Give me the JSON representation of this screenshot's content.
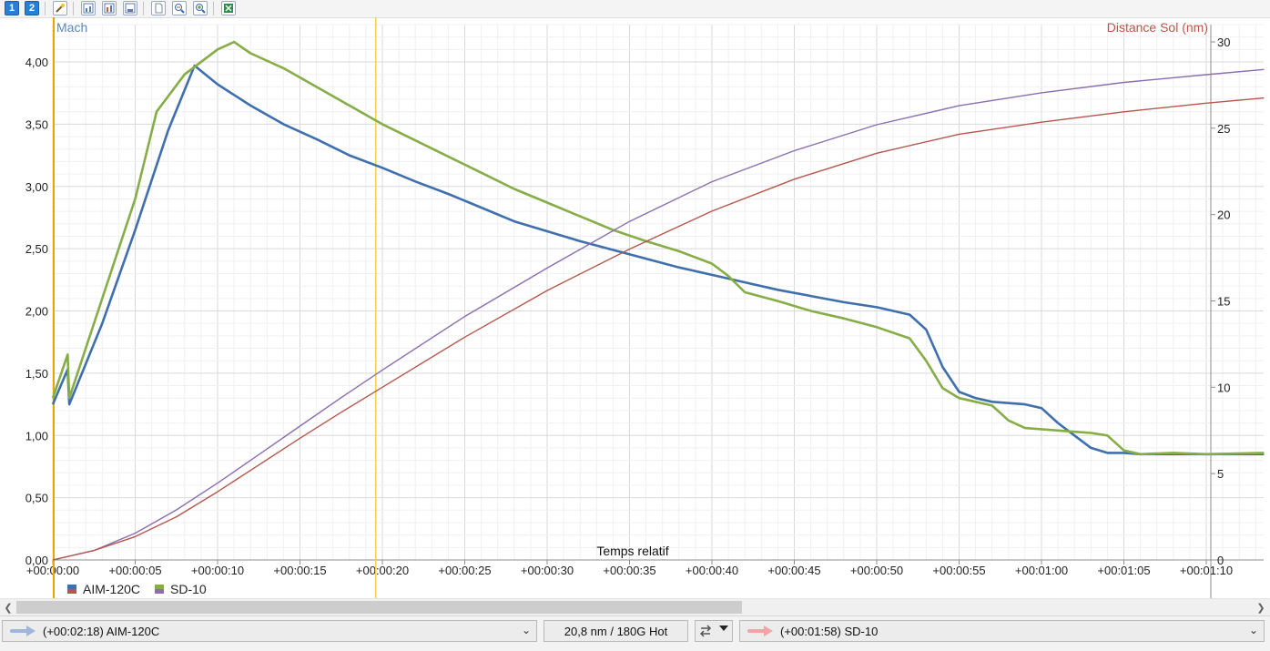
{
  "toolbar": {
    "btn1_label": "1",
    "btn2_label": "2"
  },
  "colors": {
    "series_blue": "#3f6fad",
    "series_green": "#86ad47",
    "series_purple": "#8a6eb0",
    "series_red": "#b5574c",
    "cursor_yellow": "#f2d24a",
    "cursor_orange": "#e8a600"
  },
  "legend": {
    "items": [
      {
        "label": "AIM-120C",
        "swatch_top": "#3f6fad",
        "swatch_bottom": "#b5574c"
      },
      {
        "label": "SD-10",
        "swatch_top": "#86ad47",
        "swatch_bottom": "#8a6eb0"
      }
    ]
  },
  "statusbar": {
    "left_select": "(+00:02:18) AIM-120C",
    "center_readout": "20,8 nm / 180G Hot",
    "right_select": "(+00:01:58) SD-10"
  },
  "chart_data": {
    "type": "line",
    "xlabel": "Temps relatif",
    "y_left_label": "Mach",
    "y_right_label": "Distance Sol (nm)",
    "x_range_seconds": [
      0,
      73.5
    ],
    "x_tick_values": [
      0,
      5,
      10,
      15,
      20,
      25,
      30,
      35,
      40,
      45,
      50,
      55,
      60,
      65,
      70
    ],
    "x_tick_labels": [
      "+00:00:00",
      "+00:00:05",
      "+00:00:10",
      "+00:00:15",
      "+00:00:20",
      "+00:00:25",
      "+00:00:30",
      "+00:00:35",
      "+00:00:40",
      "+00:00:45",
      "+00:00:50",
      "+00:00:55",
      "+00:01:00",
      "+00:01:05",
      "+00:01:10"
    ],
    "y_left_range": [
      0,
      4.3
    ],
    "y_left_ticks": [
      0,
      0.5,
      1,
      1.5,
      2,
      2.5,
      3,
      3.5,
      4
    ],
    "y_left_tick_labels": [
      "0,00",
      "0,50",
      "1,00",
      "1,50",
      "2,00",
      "2,50",
      "3,00",
      "3,50",
      "4,00"
    ],
    "y_right_range": [
      0,
      31
    ],
    "y_right_ticks": [
      0,
      5,
      10,
      15,
      20,
      25,
      30
    ],
    "y_right_tick_labels": [
      "0",
      "5",
      "10",
      "15",
      "20",
      "25",
      "30"
    ],
    "grid": true,
    "cursor_lines_x": [
      0,
      19.6
    ],
    "series": [
      {
        "name": "AIM-120C",
        "axis": "left",
        "color": "#3f6fad",
        "x": [
          0,
          0.9,
          1,
          3,
          5,
          7,
          8.6,
          10,
          12,
          14,
          16,
          18,
          20,
          22,
          24,
          26,
          28,
          30,
          32,
          34,
          36,
          38,
          40,
          42,
          44,
          46,
          48,
          50,
          52,
          53,
          54,
          55,
          56,
          57,
          58,
          59,
          60,
          61,
          62,
          63,
          64,
          65,
          66,
          68,
          70,
          73.5
        ],
        "y": [
          1.25,
          1.53,
          1.25,
          1.9,
          2.65,
          3.45,
          3.97,
          3.82,
          3.65,
          3.5,
          3.38,
          3.25,
          3.15,
          3.04,
          2.94,
          2.83,
          2.72,
          2.64,
          2.56,
          2.49,
          2.42,
          2.35,
          2.29,
          2.23,
          2.17,
          2.12,
          2.07,
          2.03,
          1.97,
          1.85,
          1.55,
          1.35,
          1.3,
          1.27,
          1.26,
          1.25,
          1.22,
          1.1,
          1.0,
          0.9,
          0.86,
          0.86,
          0.85,
          0.85,
          0.85,
          0.85
        ]
      },
      {
        "name": "SD-10",
        "axis": "left",
        "color": "#86ad47",
        "x": [
          0,
          0.9,
          1,
          3,
          5,
          6.3,
          8,
          10,
          11,
          12,
          14,
          16,
          18,
          20,
          22,
          24,
          26,
          28,
          30,
          32,
          34,
          36,
          38,
          40,
          41,
          42,
          44,
          46,
          48,
          50,
          52,
          53,
          54,
          55,
          56,
          57,
          58,
          59,
          60,
          61,
          62,
          63,
          64,
          65,
          66,
          68,
          70,
          73.5
        ],
        "y": [
          1.3,
          1.65,
          1.3,
          2.1,
          2.9,
          3.6,
          3.9,
          4.1,
          4.16,
          4.07,
          3.95,
          3.8,
          3.65,
          3.5,
          3.37,
          3.24,
          3.11,
          2.98,
          2.87,
          2.76,
          2.65,
          2.56,
          2.48,
          2.38,
          2.28,
          2.15,
          2.08,
          2.0,
          1.94,
          1.87,
          1.78,
          1.6,
          1.38,
          1.3,
          1.27,
          1.24,
          1.12,
          1.06,
          1.05,
          1.04,
          1.03,
          1.02,
          1.0,
          0.88,
          0.85,
          0.86,
          0.85,
          0.86
        ]
      },
      {
        "name": "SD-10",
        "axis": "right",
        "color": "#8a6eb0",
        "x": [
          0,
          2.5,
          5,
          7.5,
          10,
          12.5,
          15,
          17.5,
          20,
          25,
          30,
          35,
          40,
          45,
          50,
          55,
          60,
          65,
          70,
          73.5
        ],
        "y": [
          0,
          0.55,
          1.55,
          2.9,
          4.45,
          6.1,
          7.75,
          9.4,
          11.0,
          14.1,
          16.9,
          19.6,
          21.9,
          23.7,
          25.2,
          26.3,
          27.05,
          27.65,
          28.1,
          28.4
        ]
      },
      {
        "name": "AIM-120C",
        "axis": "right",
        "color": "#b5574c",
        "x": [
          0,
          2.5,
          5,
          7.5,
          10,
          12.5,
          15,
          17.5,
          20,
          25,
          30,
          35,
          40,
          45,
          50,
          55,
          60,
          65,
          70,
          73.5
        ],
        "y": [
          0,
          0.55,
          1.35,
          2.5,
          3.95,
          5.5,
          7.05,
          8.55,
          10.0,
          12.9,
          15.6,
          18.0,
          20.2,
          22.05,
          23.55,
          24.65,
          25.35,
          25.95,
          26.45,
          26.75
        ]
      }
    ]
  }
}
